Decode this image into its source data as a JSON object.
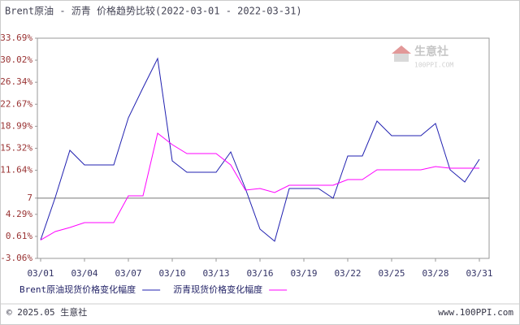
{
  "chart_data": {
    "type": "line",
    "title": "Brent原油 - 沥青 价格趋势比较(2022-03-01 - 2022-03-31)",
    "categories": [
      "03/01",
      null,
      null,
      "03/04",
      null,
      null,
      "03/07",
      null,
      null,
      "03/10",
      null,
      null,
      "03/13",
      null,
      null,
      "03/16",
      null,
      null,
      "03/19",
      null,
      null,
      "03/22",
      null,
      null,
      "03/25",
      null,
      null,
      "03/28",
      null,
      null,
      "03/31"
    ],
    "series": [
      {
        "name": "Brent原油现货价格变化幅度",
        "color": "#2020b0",
        "values": [
          0,
          7.11,
          14.98,
          12.54,
          12.54,
          12.54,
          20.4,
          25.42,
          30.3,
          13.21,
          11.31,
          11.31,
          11.31,
          14.71,
          8.6,
          1.82,
          -0.2,
          8.6,
          8.6,
          8.6,
          6.98,
          14.03,
          14.03,
          19.86,
          17.42,
          17.42,
          17.42,
          19.45,
          11.72,
          9.69,
          13.48
        ]
      },
      {
        "name": "沥青现货价格变化幅度",
        "color": "#ff00ff",
        "values": [
          0,
          1.42,
          2.09,
          2.91,
          2.91,
          2.91,
          7.38,
          7.38,
          17.82,
          15.93,
          14.43,
          14.43,
          14.43,
          12.54,
          8.33,
          8.6,
          7.92,
          9.14,
          9.14,
          9.14,
          9.14,
          10.09,
          10.09,
          11.72,
          11.72,
          11.72,
          11.72,
          12.26,
          11.99,
          11.99,
          11.99
        ]
      }
    ],
    "ylim": [
      -3.06,
      33.69
    ],
    "yticks": [
      {
        "value": -3.06,
        "label": "-3.06%"
      },
      {
        "value": 0.61,
        "label": "0.61%"
      },
      {
        "value": 4.29,
        "label": "4.29%"
      },
      7,
      {
        "value": 11.64,
        "label": "11.64%"
      },
      {
        "value": 15.32,
        "label": "15.32%"
      },
      {
        "value": 18.99,
        "label": "18.99%"
      },
      {
        "value": 22.67,
        "label": "22.67%"
      },
      {
        "value": 26.34,
        "label": "26.34%"
      },
      {
        "value": 30.02,
        "label": "30.02%"
      },
      {
        "value": 33.69,
        "label": "33.69%"
      }
    ],
    "baseline": 7,
    "legend": "bottom"
  },
  "watermark": {
    "name": "生意社",
    "site": "100PPI.COM"
  },
  "footer": {
    "left": "© 2025.05 生意社",
    "right": "www.100PPI.com"
  }
}
